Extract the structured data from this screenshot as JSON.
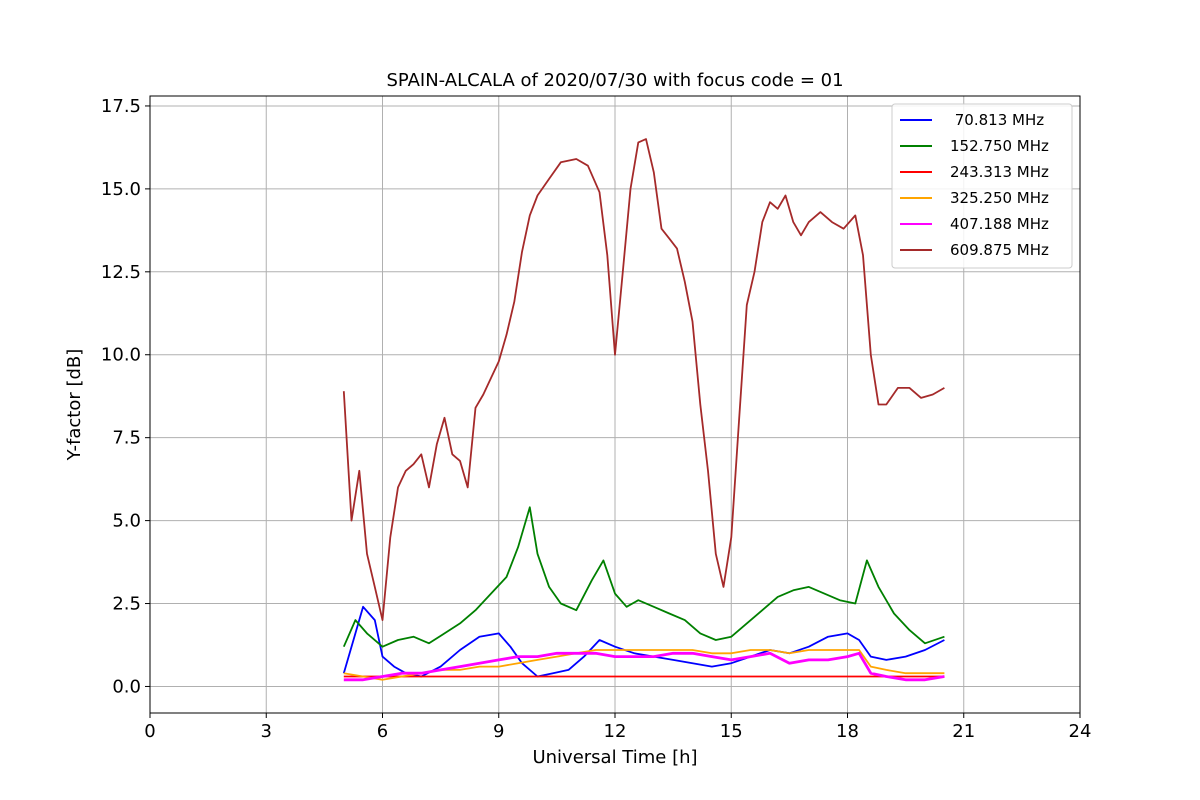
{
  "chart_data": {
    "type": "line",
    "title": "SPAIN-ALCALA of 2020/07/30 with focus code = 01",
    "xlabel": "Universal Time [h]",
    "ylabel": "Y-factor [dB]",
    "xlim": [
      0,
      24
    ],
    "ylim": [
      -0.8,
      17.8
    ],
    "xticks": [
      0,
      3,
      6,
      9,
      12,
      15,
      18,
      21,
      24
    ],
    "xtick_labels": [
      "0",
      "3",
      "6",
      "9",
      "12",
      "15",
      "18",
      "21",
      "24"
    ],
    "yticks": [
      0.0,
      2.5,
      5.0,
      7.5,
      10.0,
      12.5,
      15.0,
      17.5
    ],
    "ytick_labels": [
      "0.0",
      "2.5",
      "5.0",
      "7.5",
      "10.0",
      "12.5",
      "15.0",
      "17.5"
    ],
    "grid": true,
    "legend_position": "top-right",
    "series": [
      {
        "name": " 70.813 MHz",
        "color": "#0000ff",
        "x": [
          5.0,
          5.3,
          5.5,
          5.8,
          6.0,
          6.3,
          6.6,
          7.0,
          7.5,
          8.0,
          8.5,
          9.0,
          9.3,
          9.6,
          10.0,
          10.4,
          10.8,
          11.2,
          11.6,
          12.0,
          12.5,
          13.0,
          13.5,
          14.0,
          14.5,
          15.0,
          15.5,
          16.0,
          16.5,
          17.0,
          17.5,
          18.0,
          18.3,
          18.6,
          19.0,
          19.5,
          20.0,
          20.5
        ],
        "values": [
          0.4,
          1.6,
          2.4,
          2.0,
          0.9,
          0.6,
          0.4,
          0.3,
          0.6,
          1.1,
          1.5,
          1.6,
          1.2,
          0.7,
          0.3,
          0.4,
          0.5,
          0.9,
          1.4,
          1.2,
          1.0,
          0.9,
          0.8,
          0.7,
          0.6,
          0.7,
          0.9,
          1.1,
          1.0,
          1.2,
          1.5,
          1.6,
          1.4,
          0.9,
          0.8,
          0.9,
          1.1,
          1.4
        ]
      },
      {
        "name": "152.750 MHz",
        "color": "#008000",
        "x": [
          5.0,
          5.3,
          5.6,
          6.0,
          6.4,
          6.8,
          7.2,
          7.6,
          8.0,
          8.4,
          8.8,
          9.2,
          9.5,
          9.8,
          10.0,
          10.3,
          10.6,
          11.0,
          11.4,
          11.7,
          12.0,
          12.3,
          12.6,
          13.0,
          13.4,
          13.8,
          14.2,
          14.6,
          15.0,
          15.4,
          15.8,
          16.2,
          16.6,
          17.0,
          17.4,
          17.8,
          18.2,
          18.5,
          18.8,
          19.2,
          19.6,
          20.0,
          20.5
        ],
        "values": [
          1.2,
          2.0,
          1.6,
          1.2,
          1.4,
          1.5,
          1.3,
          1.6,
          1.9,
          2.3,
          2.8,
          3.3,
          4.2,
          5.4,
          4.0,
          3.0,
          2.5,
          2.3,
          3.2,
          3.8,
          2.8,
          2.4,
          2.6,
          2.4,
          2.2,
          2.0,
          1.6,
          1.4,
          1.5,
          1.9,
          2.3,
          2.7,
          2.9,
          3.0,
          2.8,
          2.6,
          2.5,
          3.8,
          3.0,
          2.2,
          1.7,
          1.3,
          1.5
        ]
      },
      {
        "name": "243.313 MHz",
        "color": "#ff0000",
        "x": [
          5.0,
          20.5
        ],
        "values": [
          0.3,
          0.3
        ]
      },
      {
        "name": "325.250 MHz",
        "color": "#ffa500",
        "x": [
          5.0,
          5.5,
          6.0,
          6.5,
          7.0,
          7.5,
          8.0,
          8.5,
          9.0,
          9.5,
          10.0,
          10.5,
          11.0,
          11.5,
          12.0,
          12.5,
          13.0,
          13.5,
          14.0,
          14.5,
          15.0,
          15.5,
          16.0,
          16.5,
          17.0,
          17.5,
          18.0,
          18.3,
          18.6,
          19.0,
          19.5,
          20.0,
          20.5
        ],
        "values": [
          0.4,
          0.3,
          0.2,
          0.3,
          0.4,
          0.5,
          0.5,
          0.6,
          0.6,
          0.7,
          0.8,
          0.9,
          1.0,
          1.1,
          1.1,
          1.1,
          1.1,
          1.1,
          1.1,
          1.0,
          1.0,
          1.1,
          1.1,
          1.0,
          1.1,
          1.1,
          1.1,
          1.1,
          0.6,
          0.5,
          0.4,
          0.4,
          0.4
        ]
      },
      {
        "name": "407.188 MHz",
        "color": "#ff00ff",
        "x": [
          5.0,
          5.5,
          6.0,
          6.5,
          7.0,
          7.5,
          8.0,
          8.5,
          9.0,
          9.5,
          10.0,
          10.5,
          11.0,
          11.5,
          12.0,
          12.5,
          13.0,
          13.5,
          14.0,
          14.5,
          15.0,
          15.5,
          16.0,
          16.5,
          17.0,
          17.5,
          18.0,
          18.3,
          18.6,
          19.0,
          19.5,
          20.0,
          20.5
        ],
        "values": [
          0.2,
          0.2,
          0.3,
          0.4,
          0.4,
          0.5,
          0.6,
          0.7,
          0.8,
          0.9,
          0.9,
          1.0,
          1.0,
          1.0,
          0.9,
          0.9,
          0.9,
          1.0,
          1.0,
          0.9,
          0.8,
          0.9,
          1.0,
          0.7,
          0.8,
          0.8,
          0.9,
          1.0,
          0.4,
          0.3,
          0.2,
          0.2,
          0.3
        ]
      },
      {
        "name": "609.875 MHz",
        "color": "#a52a2a",
        "x": [
          5.0,
          5.2,
          5.4,
          5.6,
          5.8,
          6.0,
          6.2,
          6.4,
          6.6,
          6.8,
          7.0,
          7.2,
          7.4,
          7.6,
          7.8,
          8.0,
          8.2,
          8.4,
          8.6,
          8.8,
          9.0,
          9.2,
          9.4,
          9.6,
          9.8,
          10.0,
          10.3,
          10.6,
          11.0,
          11.3,
          11.6,
          11.8,
          12.0,
          12.2,
          12.4,
          12.6,
          12.8,
          13.0,
          13.2,
          13.4,
          13.6,
          13.8,
          14.0,
          14.2,
          14.4,
          14.6,
          14.8,
          15.0,
          15.2,
          15.4,
          15.6,
          15.8,
          16.0,
          16.2,
          16.4,
          16.6,
          16.8,
          17.0,
          17.3,
          17.6,
          17.9,
          18.2,
          18.4,
          18.6,
          18.8,
          19.0,
          19.3,
          19.6,
          19.9,
          20.2,
          20.5
        ],
        "values": [
          8.9,
          5.0,
          6.5,
          4.0,
          3.0,
          2.0,
          4.5,
          6.0,
          6.5,
          6.7,
          7.0,
          6.0,
          7.3,
          8.1,
          7.0,
          6.8,
          6.0,
          8.4,
          8.8,
          9.3,
          9.8,
          10.6,
          11.6,
          13.1,
          14.2,
          14.8,
          15.3,
          15.8,
          15.9,
          15.7,
          14.9,
          13.0,
          10.0,
          12.5,
          15.0,
          16.4,
          16.5,
          15.5,
          13.8,
          13.5,
          13.2,
          12.2,
          11.0,
          8.5,
          6.5,
          4.0,
          3.0,
          4.5,
          8.0,
          11.5,
          12.5,
          14.0,
          14.6,
          14.4,
          14.8,
          14.0,
          13.6,
          14.0,
          14.3,
          14.0,
          13.8,
          14.2,
          13.0,
          10.0,
          8.5,
          8.5,
          9.0,
          9.0,
          8.7,
          8.8,
          9.0
        ]
      }
    ]
  }
}
